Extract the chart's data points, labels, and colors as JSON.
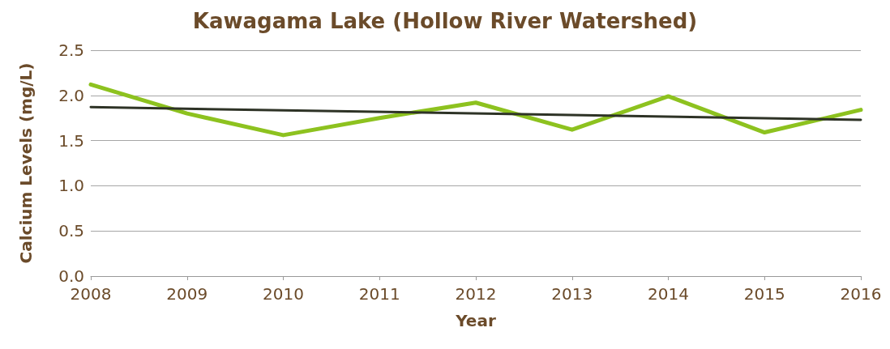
{
  "chart_data": {
    "type": "line",
    "title": "Kawagama Lake (Hollow River Watershed)",
    "xlabel": "Year",
    "ylabel": "Calcium Levels (mg/L)",
    "x": [
      2008,
      2009,
      2010,
      2011,
      2012,
      2013,
      2014,
      2015,
      2016
    ],
    "series": [
      {
        "color": "#8dc21f",
        "values": [
          2.12,
          1.8,
          1.56,
          1.75,
          1.92,
          1.62,
          1.99,
          1.59,
          1.84
        ]
      },
      {
        "type": "line",
        "color": "#2e3326",
        "x": [
          2008,
          2016
        ],
        "values": [
          1.87,
          1.73
        ]
      }
    ],
    "xlim": [
      2008,
      2016
    ],
    "xticks": [
      2008,
      2009,
      2010,
      2011,
      2012,
      2013,
      2014,
      2015,
      2016
    ],
    "ylim": [
      0,
      2.5
    ],
    "yticks": [
      {
        "value": 0,
        "label": "0.0"
      },
      0.5,
      {
        "value": 1,
        "label": "1.0"
      },
      1.5,
      {
        "value": 2,
        "label": "2.0"
      },
      2.5
    ],
    "grid": "y",
    "marker": "none",
    "line_style": "solid"
  }
}
